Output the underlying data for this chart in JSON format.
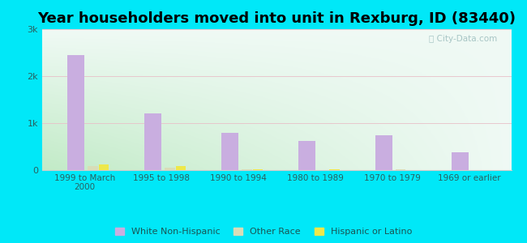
{
  "title": "Year householders moved into unit in Rexburg, ID (83440)",
  "categories": [
    "1999 to March\n2000",
    "1995 to 1998",
    "1990 to 1994",
    "1980 to 1989",
    "1970 to 1979",
    "1969 or earlier"
  ],
  "white_non_hispanic": [
    2450,
    1200,
    800,
    620,
    750,
    380
  ],
  "other_race": [
    90,
    60,
    15,
    8,
    12,
    0
  ],
  "hispanic_or_latino": [
    120,
    80,
    10,
    10,
    8,
    0
  ],
  "white_color": "#c9aee0",
  "other_race_color": "#d8ddb8",
  "hispanic_color": "#ede84a",
  "background_outer": "#00e8f8",
  "ylim": [
    0,
    3000
  ],
  "yticks": [
    0,
    1000,
    2000,
    3000
  ],
  "ytick_labels": [
    "0",
    "1k",
    "2k",
    "3k"
  ],
  "bar_width": 0.22,
  "title_fontsize": 13,
  "legend_labels": [
    "White Non-Hispanic",
    "Other Race",
    "Hispanic or Latino"
  ]
}
